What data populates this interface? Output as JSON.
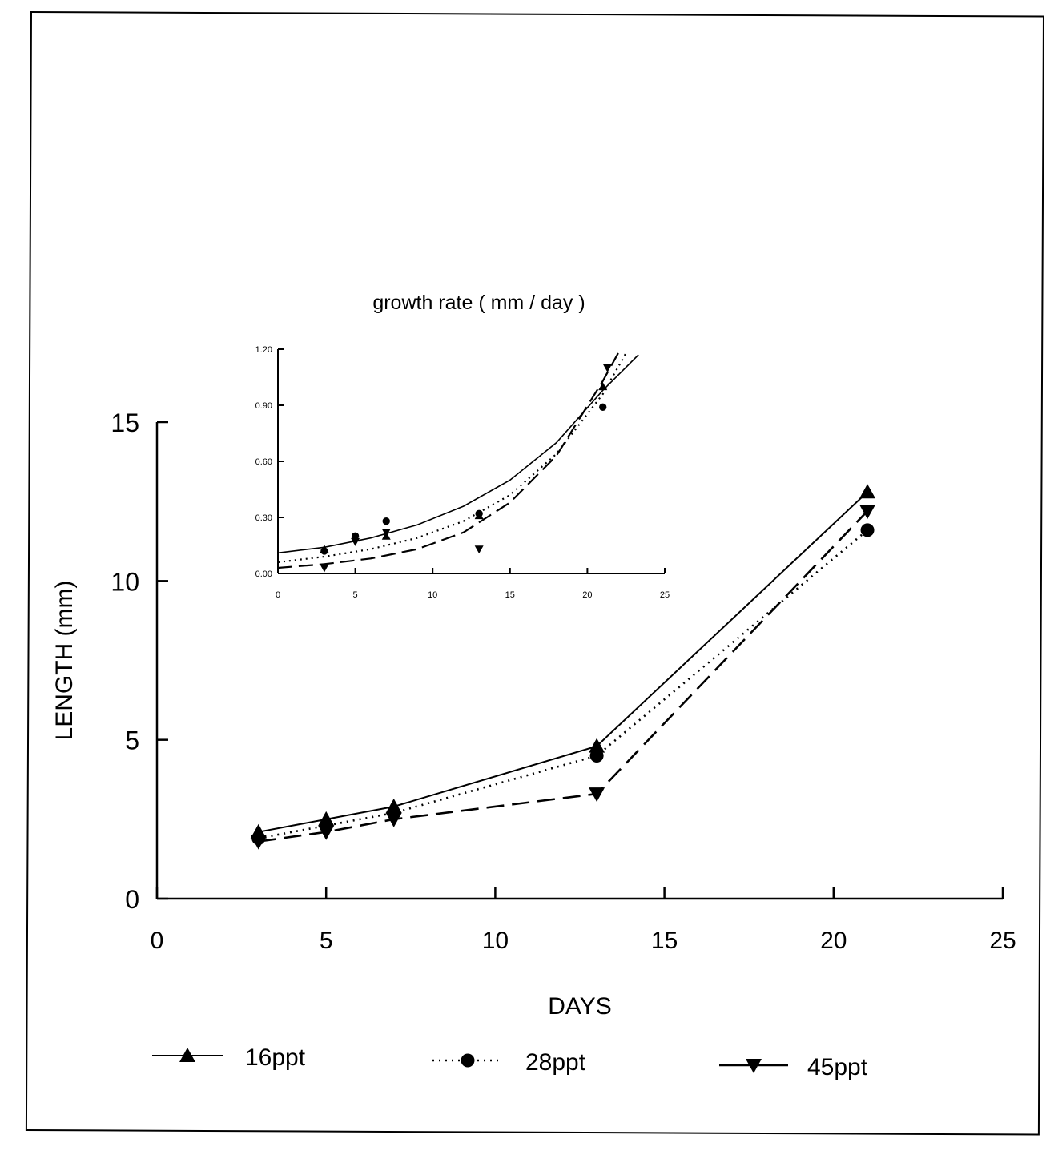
{
  "chart_data": [
    {
      "type": "line",
      "title": "",
      "xlabel": "DAYS",
      "ylabel": "LENGTH (mm)",
      "xlim": [
        0,
        25
      ],
      "ylim": [
        0,
        15
      ],
      "xticks": [
        0,
        5,
        10,
        15,
        20,
        25
      ],
      "yticks": [
        0,
        5,
        10,
        15
      ],
      "xtick_labels": [
        "0",
        "5",
        "10",
        "15",
        "20",
        "25"
      ],
      "ytick_labels": [
        "0",
        "5",
        "10",
        "15"
      ],
      "grid": false,
      "legend_position": "bottom",
      "series": [
        {
          "name": "16ppt",
          "style": "solid",
          "marker": "triangle-up",
          "x": [
            3,
            5,
            7,
            13,
            21
          ],
          "y": [
            2.1,
            2.5,
            2.9,
            4.8,
            12.8
          ]
        },
        {
          "name": "28ppt",
          "style": "dotted",
          "marker": "circle",
          "x": [
            3,
            5,
            7,
            13,
            21
          ],
          "y": [
            1.9,
            2.3,
            2.7,
            4.5,
            11.6
          ]
        },
        {
          "name": "45ppt",
          "style": "dashed",
          "marker": "triangle-down",
          "x": [
            3,
            5,
            7,
            13,
            21
          ],
          "y": [
            1.8,
            2.1,
            2.5,
            3.3,
            12.2
          ]
        }
      ]
    },
    {
      "type": "scatter",
      "title": "growth rate ( mm / day )",
      "xlabel": "",
      "ylabel": "",
      "xlim": [
        0,
        25
      ],
      "ylim": [
        0,
        1.2
      ],
      "xticks": [
        0,
        5,
        10,
        15,
        20,
        25
      ],
      "yticks": [
        0,
        0.3,
        0.6,
        0.9,
        1.2
      ],
      "xtick_labels": [
        "0",
        "5",
        "10",
        "15",
        "20",
        "25"
      ],
      "ytick_labels": [
        "0.00",
        "0.30",
        "0.60",
        "0.90",
        "1.20"
      ],
      "grid": false,
      "series": [
        {
          "name": "16ppt",
          "style": "solid",
          "marker": "triangle-up",
          "x": [
            3,
            5,
            7,
            13,
            21
          ],
          "y": [
            0.13,
            0.19,
            0.2,
            0.31,
            1.0
          ],
          "fit_curve": {
            "x": [
              0,
              3,
              6,
              9,
              12,
              15,
              18,
              21,
              23.3
            ],
            "y": [
              0.11,
              0.14,
              0.19,
              0.26,
              0.36,
              0.5,
              0.7,
              0.98,
              1.17
            ]
          }
        },
        {
          "name": "28ppt",
          "style": "dotted",
          "marker": "circle",
          "x": [
            3,
            5,
            7,
            13,
            21
          ],
          "y": [
            0.12,
            0.2,
            0.28,
            0.32,
            0.89
          ],
          "fit_curve": {
            "x": [
              0,
              3,
              6,
              9,
              12,
              15,
              18,
              21,
              22.5
            ],
            "y": [
              0.06,
              0.09,
              0.13,
              0.19,
              0.28,
              0.42,
              0.64,
              0.96,
              1.18
            ]
          }
        },
        {
          "name": "45ppt",
          "style": "dashed",
          "marker": "triangle-down",
          "x": [
            3,
            5,
            7,
            13,
            21.3
          ],
          "y": [
            0.03,
            0.17,
            0.22,
            0.13,
            1.1
          ],
          "fit_curve": {
            "x": [
              0,
              3,
              6,
              9,
              12,
              15,
              18,
              21,
              22
            ],
            "y": [
              0.03,
              0.05,
              0.08,
              0.13,
              0.22,
              0.38,
              0.63,
              1.03,
              1.18
            ]
          }
        }
      ]
    }
  ]
}
